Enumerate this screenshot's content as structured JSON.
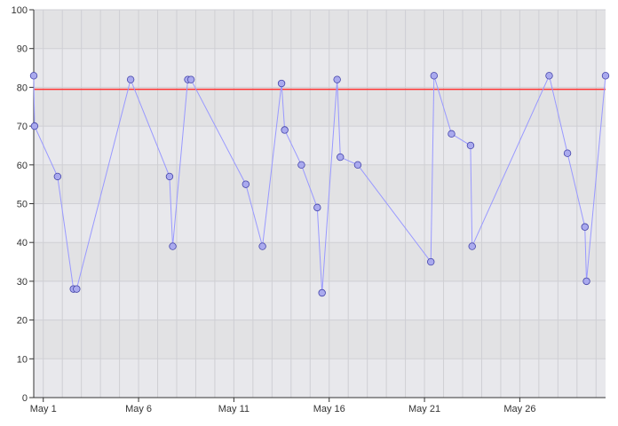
{
  "chart_data": {
    "type": "scatter",
    "title": "",
    "xlabel": "",
    "ylabel": "",
    "ylim": [
      0,
      100
    ],
    "y_ticks": [
      0,
      10,
      20,
      30,
      40,
      50,
      60,
      70,
      80,
      90,
      100
    ],
    "x_axis": {
      "type": "date",
      "range": [
        "2023-04-30T12:00",
        "2023-05-30T12:00"
      ],
      "ticks": [
        {
          "date": "2023-05-01",
          "label": "May 1"
        },
        {
          "date": "2023-05-06",
          "label": "May 6"
        },
        {
          "date": "2023-05-11",
          "label": "May 11"
        },
        {
          "date": "2023-05-16",
          "label": "May 16"
        },
        {
          "date": "2023-05-21",
          "label": "May 21"
        },
        {
          "date": "2023-05-26",
          "label": "May 26"
        }
      ]
    },
    "grid": true,
    "threshold": {
      "value": 79.5,
      "color": "#ff3333"
    },
    "colors": {
      "plot_background": "#e8e8ec",
      "band_alternate": "#e2e2e4",
      "grid": "#cfcfd4",
      "line": "#9999ff",
      "marker_fill": "#aaaaee",
      "marker_stroke": "#4444aa",
      "axis": "#333333"
    },
    "series": [
      {
        "points": [
          {
            "x": "2023-04-30T12:00",
            "y": 83
          },
          {
            "x": "2023-04-30T13:00",
            "y": 70
          },
          {
            "x": "2023-05-01T18:00",
            "y": 57
          },
          {
            "x": "2023-05-02T14:00",
            "y": 28
          },
          {
            "x": "2023-05-02T18:00",
            "y": 28
          },
          {
            "x": "2023-05-05T14:00",
            "y": 82
          },
          {
            "x": "2023-05-07T15:00",
            "y": 57
          },
          {
            "x": "2023-05-07T19:00",
            "y": 39
          },
          {
            "x": "2023-05-08T14:00",
            "y": 82
          },
          {
            "x": "2023-05-08T18:00",
            "y": 82
          },
          {
            "x": "2023-05-11T15:00",
            "y": 55
          },
          {
            "x": "2023-05-12T12:00",
            "y": 39
          },
          {
            "x": "2023-05-13T12:00",
            "y": 81
          },
          {
            "x": "2023-05-13T16:00",
            "y": 69
          },
          {
            "x": "2023-05-14T13:00",
            "y": 60
          },
          {
            "x": "2023-05-15T09:00",
            "y": 49
          },
          {
            "x": "2023-05-15T15:00",
            "y": 27
          },
          {
            "x": "2023-05-16T10:00",
            "y": 82
          },
          {
            "x": "2023-05-16T14:00",
            "y": 62
          },
          {
            "x": "2023-05-17T12:00",
            "y": 60
          },
          {
            "x": "2023-05-21T08:00",
            "y": 35
          },
          {
            "x": "2023-05-21T12:00",
            "y": 83
          },
          {
            "x": "2023-05-22T10:00",
            "y": 68
          },
          {
            "x": "2023-05-23T10:00",
            "y": 65
          },
          {
            "x": "2023-05-23T12:00",
            "y": 39
          },
          {
            "x": "2023-05-27T13:00",
            "y": 83
          },
          {
            "x": "2023-05-28T12:00",
            "y": 63
          },
          {
            "x": "2023-05-29T10:00",
            "y": 44
          },
          {
            "x": "2023-05-29T12:00",
            "y": 30
          },
          {
            "x": "2023-05-30T12:00",
            "y": 83
          }
        ]
      }
    ]
  }
}
